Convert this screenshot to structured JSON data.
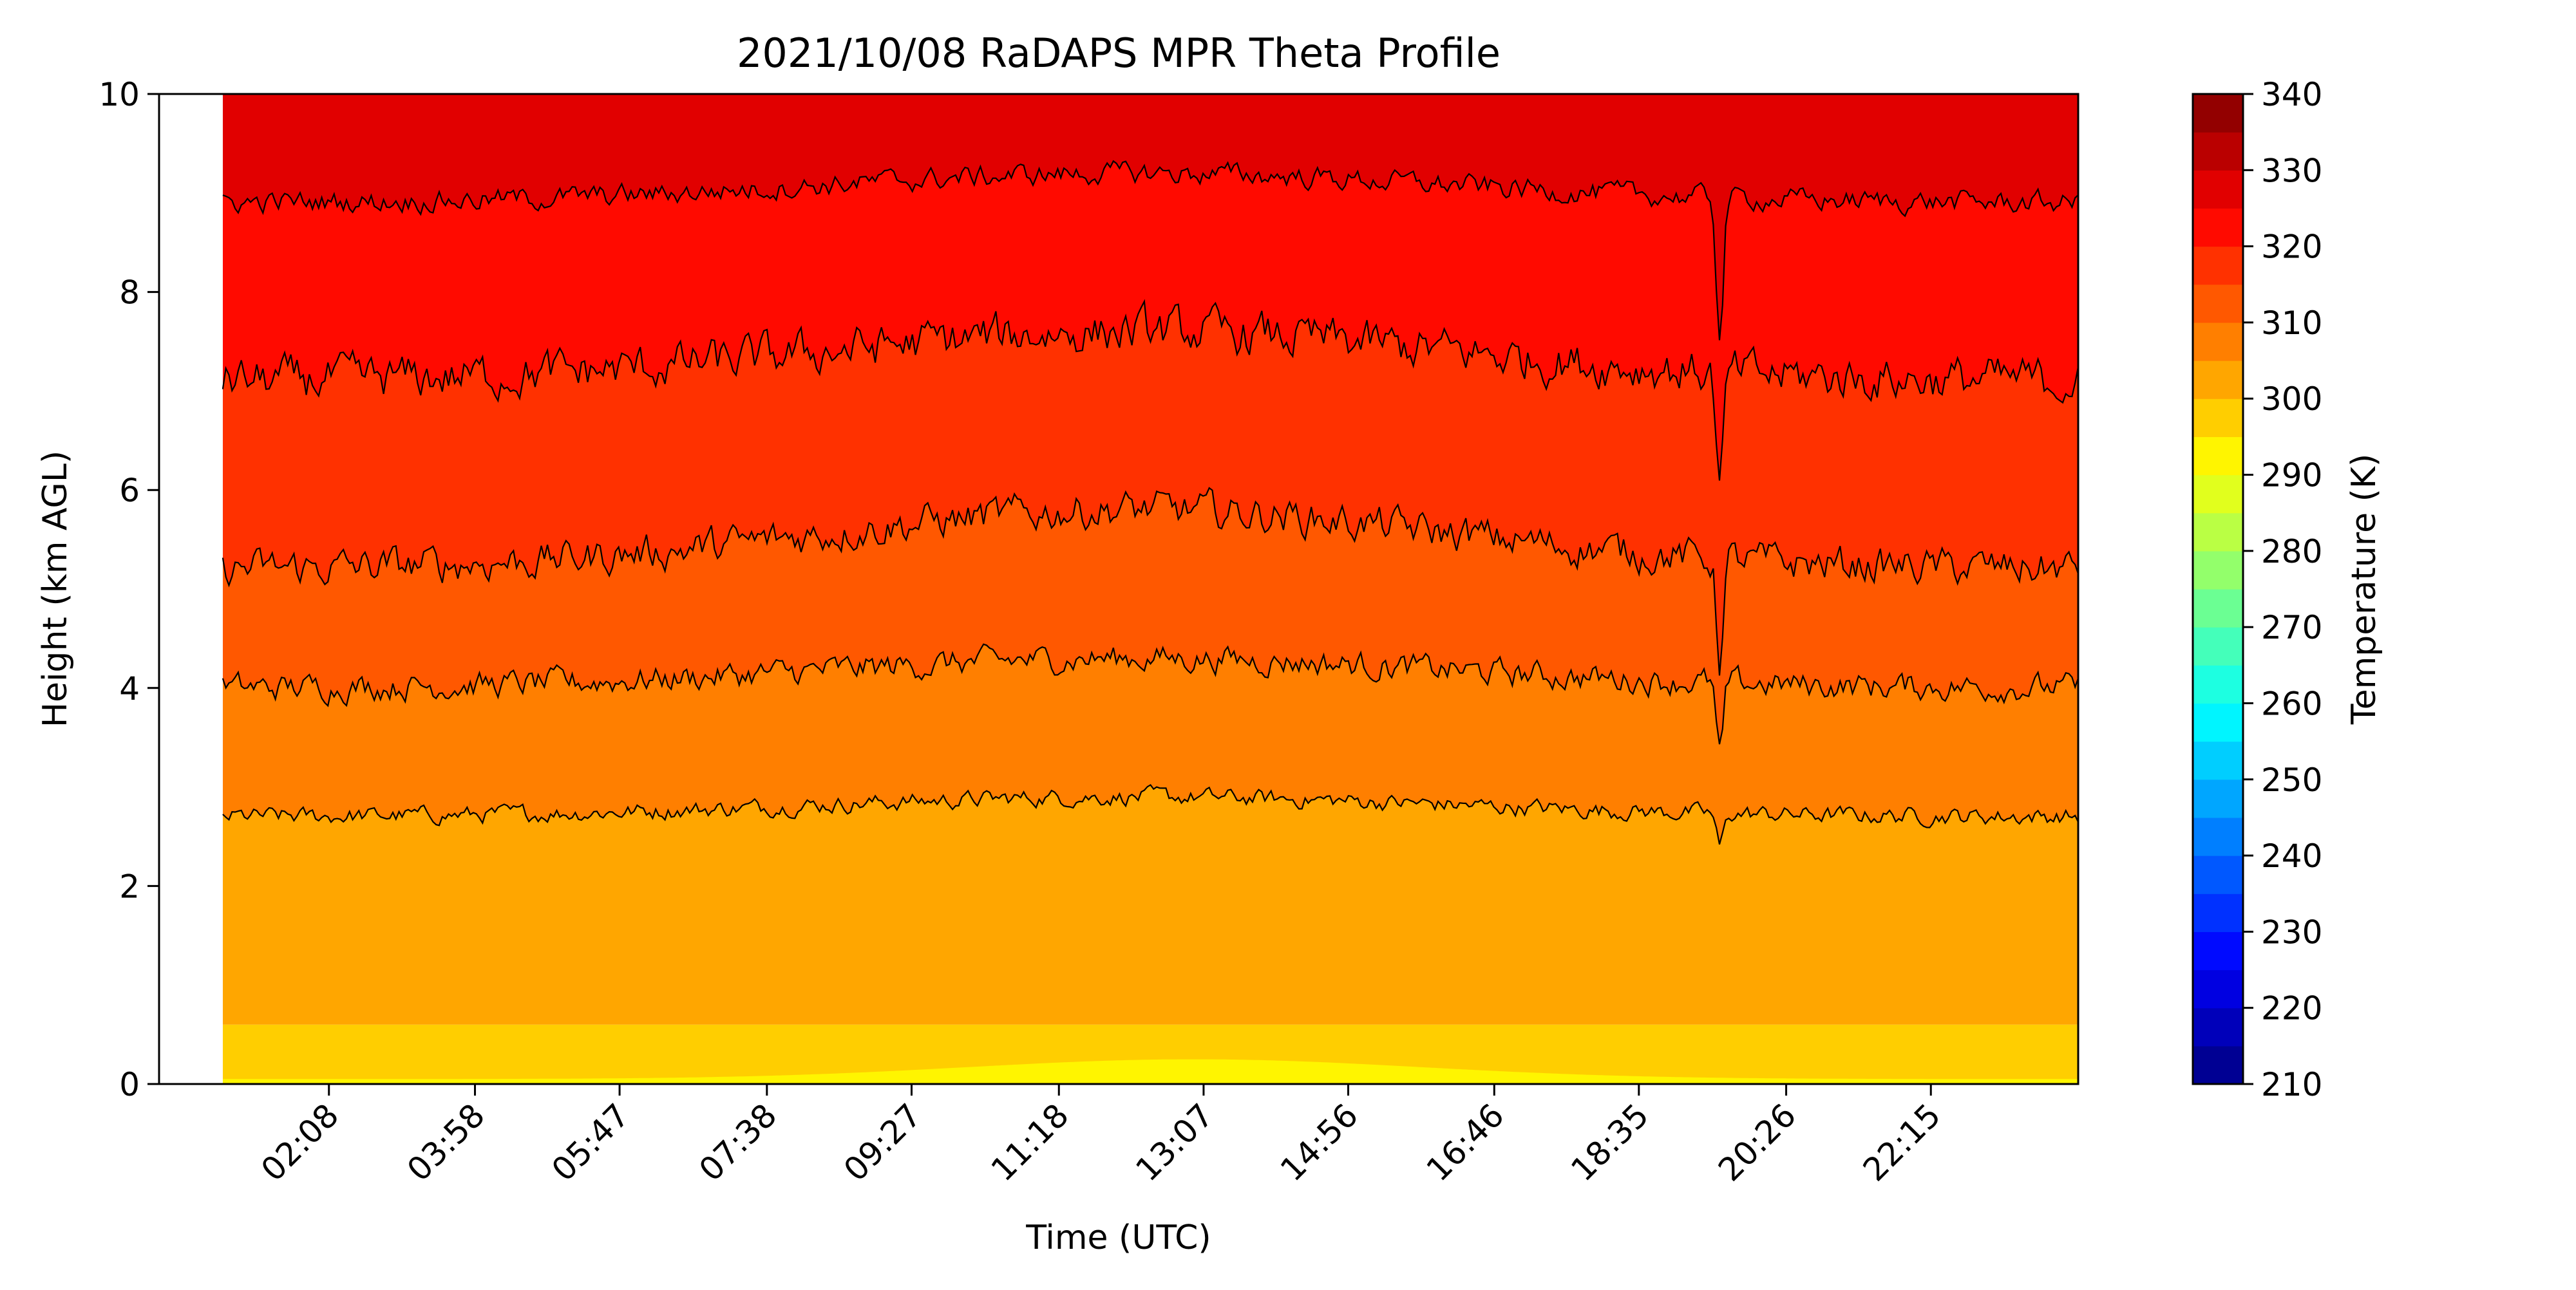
{
  "chart_data": {
    "type": "heatmap",
    "subtype": "filled-contour",
    "title": "2021/10/08 RaDAPS MPR Theta Profile",
    "xlabel": "Time (UTC)",
    "ylabel": "Height (km AGL)",
    "colorbar_label": "Temperature (K)",
    "x_tick_labels": [
      "02:08",
      "03:58",
      "05:47",
      "07:38",
      "09:27",
      "11:18",
      "13:07",
      "14:56",
      "16:46",
      "18:35",
      "20:26",
      "22:15"
    ],
    "x_tick_hours": [
      2.133,
      3.967,
      5.783,
      7.633,
      9.45,
      11.3,
      13.117,
      14.933,
      16.767,
      18.583,
      20.433,
      22.25
    ],
    "x_range_hours": [
      0.0,
      24.1
    ],
    "data_start_hour": 0.8,
    "y_ticks": [
      0,
      2,
      4,
      6,
      8,
      10
    ],
    "ylim": [
      0,
      10
    ],
    "colorbar_ticks": [
      210,
      220,
      230,
      240,
      250,
      260,
      270,
      280,
      290,
      300,
      310,
      320,
      330,
      340
    ],
    "colorbar_range": [
      210,
      340
    ],
    "colorbar_step": 5,
    "colormap_stops": [
      "#00007f",
      "#0000ff",
      "#007fff",
      "#00ffff",
      "#7fff7f",
      "#ffff00",
      "#ff7f00",
      "#ff0000",
      "#7f0000"
    ],
    "contour_levels_K": [
      295,
      300,
      305,
      310,
      315,
      320,
      325,
      330
    ],
    "isentrope_mean_heights_km": {
      "300": 0.55,
      "305": 2.7,
      "310": 4.0,
      "315": 5.2,
      "320": 7.1,
      "325": 8.9
    },
    "isentrope_peak_heights_km": {
      "305": 2.9,
      "310": 4.3,
      "315": 5.8,
      "320": 7.6,
      "325": 9.2
    }
  }
}
